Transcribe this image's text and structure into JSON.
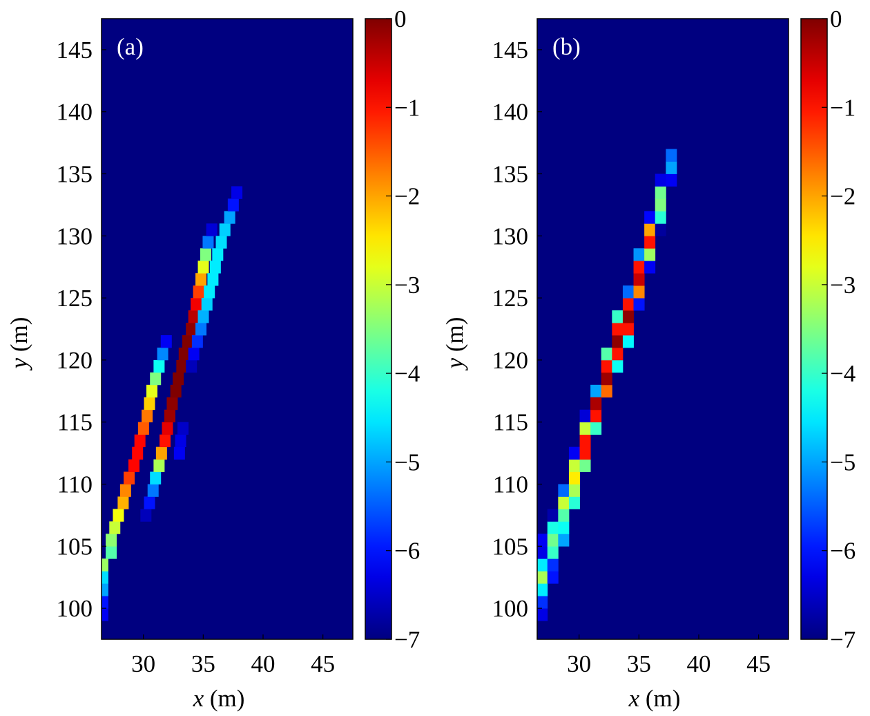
{
  "chart_data": [
    {
      "type": "heatmap",
      "panel_label": "(a)",
      "xlabel": "x (m)",
      "xlabel_var": "x",
      "xlabel_unit": " (m)",
      "ylabel": "y (m)",
      "ylabel_var": "y",
      "ylabel_unit": " (m)",
      "xlim": [
        26.5,
        47.5
      ],
      "ylim": [
        97.5,
        147.5
      ],
      "xticks": [
        30,
        35,
        40,
        45
      ],
      "yticks": [
        100,
        105,
        110,
        115,
        120,
        125,
        130,
        135,
        140,
        145
      ],
      "colormap": "jet",
      "background_value": -7,
      "colorbar": {
        "min": -7,
        "max": 0,
        "ticks": [
          0,
          -1,
          -2,
          -3,
          -4,
          -5,
          -6,
          -7
        ],
        "tick_labels": [
          "0",
          "−1",
          "−2",
          "−3",
          "−4",
          "−5",
          "−6",
          "−7"
        ]
      },
      "cell_size": [
        0.9,
        1.0
      ],
      "cells": [
        [
          26.6,
          99.5,
          -6.2
        ],
        [
          26.6,
          100.5,
          -6.0
        ],
        [
          26.6,
          101.5,
          -5.0
        ],
        [
          26.6,
          102.5,
          -4.6
        ],
        [
          26.6,
          103.5,
          -3.3
        ],
        [
          27.3,
          104.5,
          -3.8
        ],
        [
          27.3,
          105.5,
          -3.4
        ],
        [
          27.6,
          106.5,
          -3.0
        ],
        [
          27.9,
          107.5,
          -2.7
        ],
        [
          28.3,
          108.5,
          -2.1
        ],
        [
          28.5,
          109.5,
          -1.8
        ],
        [
          28.8,
          110.5,
          -1.3
        ],
        [
          29.2,
          111.5,
          -0.9
        ],
        [
          29.5,
          112.5,
          -0.9
        ],
        [
          29.7,
          113.5,
          -0.9
        ],
        [
          30.0,
          114.5,
          -1.5
        ],
        [
          30.3,
          115.5,
          -1.7
        ],
        [
          30.5,
          116.5,
          -2.3
        ],
        [
          30.7,
          117.5,
          -2.8
        ],
        [
          31.0,
          118.5,
          -3.5
        ],
        [
          31.3,
          119.5,
          -4.3
        ],
        [
          31.6,
          120.5,
          -5.2
        ],
        [
          31.9,
          121.5,
          -6.2
        ],
        [
          30.2,
          107.5,
          -6.6
        ],
        [
          30.5,
          108.5,
          -6.0
        ],
        [
          30.8,
          109.5,
          -5.3
        ],
        [
          31.0,
          110.5,
          -4.6
        ],
        [
          31.3,
          111.5,
          -3.2
        ],
        [
          31.5,
          112.5,
          -2.0
        ],
        [
          31.8,
          113.5,
          -1.0
        ],
        [
          32.0,
          114.5,
          -0.7
        ],
        [
          32.2,
          115.5,
          -0.2
        ],
        [
          32.4,
          116.5,
          -0.1
        ],
        [
          32.7,
          117.5,
          0.0
        ],
        [
          32.9,
          118.5,
          0.0
        ],
        [
          33.2,
          119.5,
          0.0
        ],
        [
          33.4,
          120.5,
          0.0
        ],
        [
          33.7,
          121.5,
          0.0
        ],
        [
          34.0,
          122.5,
          -0.1
        ],
        [
          34.2,
          123.5,
          -0.4
        ],
        [
          34.4,
          124.5,
          -0.8
        ],
        [
          34.6,
          125.5,
          -1.3
        ],
        [
          34.8,
          126.5,
          -2.0
        ],
        [
          35.0,
          127.5,
          -2.8
        ],
        [
          35.2,
          128.5,
          -3.5
        ],
        [
          35.4,
          129.5,
          -5.3
        ],
        [
          35.7,
          130.5,
          -6.4
        ],
        [
          33.0,
          112.5,
          -6.2
        ],
        [
          33.1,
          113.5,
          -6.3
        ],
        [
          33.3,
          114.5,
          -6.5
        ],
        [
          34.0,
          119.5,
          -6.6
        ],
        [
          34.2,
          120.5,
          -6.2
        ],
        [
          34.5,
          121.5,
          -5.8
        ],
        [
          34.8,
          122.5,
          -5.3
        ],
        [
          35.0,
          123.5,
          -4.9
        ],
        [
          35.3,
          124.5,
          -4.7
        ],
        [
          35.5,
          125.5,
          -4.5
        ],
        [
          35.8,
          126.5,
          -4.5
        ],
        [
          36.0,
          127.5,
          -4.5
        ],
        [
          36.2,
          128.5,
          -4.5
        ],
        [
          36.5,
          129.5,
          -4.6
        ],
        [
          36.8,
          130.5,
          -4.7
        ],
        [
          37.2,
          131.5,
          -5.0
        ],
        [
          37.5,
          132.5,
          -6.0
        ],
        [
          37.8,
          133.5,
          -6.3
        ]
      ]
    },
    {
      "type": "heatmap",
      "panel_label": "(b)",
      "xlabel": "x (m)",
      "xlabel_var": "x",
      "xlabel_unit": " (m)",
      "ylabel": "y (m)",
      "ylabel_var": "y",
      "ylabel_unit": " (m)",
      "xlim": [
        26.5,
        47.5
      ],
      "ylim": [
        97.5,
        147.5
      ],
      "xticks": [
        30,
        35,
        40,
        45
      ],
      "yticks": [
        100,
        105,
        110,
        115,
        120,
        125,
        130,
        135,
        140,
        145
      ],
      "colormap": "jet",
      "background_value": -7,
      "colorbar": {
        "min": -7,
        "max": 0,
        "ticks": [
          0,
          -1,
          -2,
          -3,
          -4,
          -5,
          -6,
          -7
        ],
        "tick_labels": [
          "0",
          "−1",
          "−2",
          "−3",
          "−4",
          "−5",
          "−6",
          "−7"
        ]
      },
      "cell_size": [
        0.9,
        1.0
      ],
      "cells": [
        [
          26.9,
          99.5,
          -6.3
        ],
        [
          26.9,
          100.5,
          -5.8
        ],
        [
          26.9,
          101.5,
          -4.5
        ],
        [
          26.9,
          102.5,
          -3.2
        ],
        [
          26.9,
          103.5,
          -4.5
        ],
        [
          26.9,
          104.5,
          -6.3
        ],
        [
          26.9,
          105.5,
          -6.2
        ],
        [
          27.8,
          102.5,
          -6.0
        ],
        [
          27.8,
          103.5,
          -5.8
        ],
        [
          27.8,
          104.5,
          -4.0
        ],
        [
          27.8,
          105.5,
          -3.6
        ],
        [
          27.8,
          106.5,
          -4.2
        ],
        [
          27.8,
          107.5,
          -6.7
        ],
        [
          28.7,
          105.5,
          -5.0
        ],
        [
          28.7,
          106.5,
          -4.3
        ],
        [
          28.7,
          107.5,
          -3.8
        ],
        [
          28.7,
          108.5,
          -3.0
        ],
        [
          28.7,
          109.5,
          -5.4
        ],
        [
          29.6,
          108.5,
          -4.1
        ],
        [
          29.6,
          109.5,
          -3.2
        ],
        [
          29.6,
          110.5,
          -2.5
        ],
        [
          29.6,
          111.5,
          -3.0
        ],
        [
          29.6,
          112.5,
          -6.2
        ],
        [
          30.5,
          111.5,
          -3.6
        ],
        [
          30.5,
          112.5,
          -1.0
        ],
        [
          30.5,
          113.5,
          -1.0
        ],
        [
          30.5,
          114.5,
          -3.0
        ],
        [
          30.5,
          115.5,
          -6.4
        ],
        [
          31.4,
          114.5,
          -4.0
        ],
        [
          31.4,
          115.5,
          -1.0
        ],
        [
          31.4,
          116.5,
          -0.3
        ],
        [
          31.4,
          117.5,
          -5.0
        ],
        [
          32.3,
          117.5,
          -1.6
        ],
        [
          32.3,
          118.5,
          -0.2
        ],
        [
          32.3,
          119.5,
          -1.0
        ],
        [
          32.3,
          120.5,
          -3.8
        ],
        [
          31.4,
          116.5,
          -0.3
        ],
        [
          33.2,
          119.5,
          -4.3
        ],
        [
          33.2,
          120.5,
          -1.0
        ],
        [
          33.2,
          121.5,
          -0.1
        ],
        [
          33.2,
          122.5,
          -1.0
        ],
        [
          33.2,
          123.5,
          -4.0
        ],
        [
          34.1,
          121.5,
          -4.4
        ],
        [
          34.1,
          122.5,
          -1.0
        ],
        [
          34.1,
          123.5,
          -0.1
        ],
        [
          34.1,
          124.5,
          -1.0
        ],
        [
          34.1,
          125.5,
          -5.4
        ],
        [
          35.0,
          124.5,
          -6.0
        ],
        [
          35.0,
          125.5,
          -1.8
        ],
        [
          35.0,
          126.5,
          -0.5
        ],
        [
          35.0,
          127.5,
          -1.0
        ],
        [
          35.0,
          128.5,
          -5.1
        ],
        [
          35.9,
          127.5,
          -6.2
        ],
        [
          35.9,
          128.5,
          -3.3
        ],
        [
          35.9,
          129.5,
          -1.0
        ],
        [
          35.9,
          130.5,
          -2.0
        ],
        [
          35.9,
          131.5,
          -6.1
        ],
        [
          36.8,
          130.5,
          -6.8
        ],
        [
          36.8,
          131.5,
          -4.1
        ],
        [
          36.8,
          132.5,
          -3.5
        ],
        [
          36.8,
          133.5,
          -3.6
        ],
        [
          36.8,
          134.5,
          -6.3
        ],
        [
          37.7,
          134.5,
          -6.2
        ],
        [
          37.7,
          135.5,
          -5.0
        ],
        [
          37.7,
          136.5,
          -5.4
        ]
      ]
    }
  ]
}
